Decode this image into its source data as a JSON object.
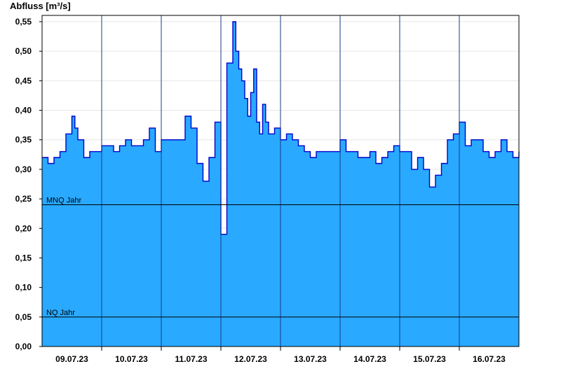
{
  "chart_data": {
    "type": "area",
    "title": "",
    "xlabel": "",
    "ylabel": "Abfluss [m³/s]",
    "ylim": [
      0,
      0.56
    ],
    "grid": true,
    "yticks": [
      "0,00",
      "0,05",
      "0,10",
      "0,15",
      "0,20",
      "0,25",
      "0,30",
      "0,35",
      "0,40",
      "0,45",
      "0,50",
      "0,55"
    ],
    "ytick_values": [
      0,
      0.05,
      0.1,
      0.15,
      0.2,
      0.25,
      0.3,
      0.35,
      0.4,
      0.45,
      0.5,
      0.55
    ],
    "xticks": [
      "09.07.23",
      "10.07.23",
      "11.07.23",
      "12.07.23",
      "13.07.23",
      "14.07.23",
      "15.07.23",
      "16.07.23"
    ],
    "xlim_days": [
      8.5,
      16.5
    ],
    "reference_lines": [
      {
        "label": "MNQ Jahr",
        "value": 0.24
      },
      {
        "label": "NQ Jahr",
        "value": 0.05
      }
    ],
    "x_days": [
      8.5,
      8.6,
      8.7,
      8.8,
      8.9,
      9.0,
      9.05,
      9.1,
      9.2,
      9.3,
      9.4,
      9.5,
      9.6,
      9.7,
      9.8,
      9.9,
      10.0,
      10.1,
      10.2,
      10.3,
      10.4,
      10.5,
      10.6,
      10.7,
      10.8,
      10.9,
      11.0,
      11.1,
      11.2,
      11.3,
      11.4,
      11.5,
      11.6,
      11.7,
      11.75,
      11.8,
      11.85,
      11.9,
      11.95,
      12.0,
      12.05,
      12.1,
      12.15,
      12.2,
      12.25,
      12.3,
      12.4,
      12.5,
      12.6,
      12.7,
      12.8,
      12.9,
      13.0,
      13.1,
      13.2,
      13.3,
      13.4,
      13.5,
      13.6,
      13.7,
      13.8,
      13.9,
      14.0,
      14.1,
      14.2,
      14.3,
      14.4,
      14.5,
      14.6,
      14.7,
      14.8,
      14.9,
      15.0,
      15.1,
      15.2,
      15.3,
      15.4,
      15.5,
      15.6,
      15.7,
      15.8,
      15.9,
      16.0,
      16.1,
      16.2,
      16.3,
      16.4,
      16.5
    ],
    "values": [
      0.32,
      0.31,
      0.32,
      0.33,
      0.36,
      0.39,
      0.37,
      0.35,
      0.32,
      0.33,
      0.33,
      0.34,
      0.34,
      0.33,
      0.34,
      0.35,
      0.34,
      0.34,
      0.35,
      0.37,
      0.33,
      0.35,
      0.35,
      0.35,
      0.35,
      0.39,
      0.37,
      0.31,
      0.28,
      0.32,
      0.38,
      0.19,
      0.48,
      0.55,
      0.5,
      0.47,
      0.45,
      0.42,
      0.39,
      0.43,
      0.47,
      0.38,
      0.36,
      0.41,
      0.38,
      0.36,
      0.37,
      0.35,
      0.36,
      0.35,
      0.34,
      0.33,
      0.32,
      0.33,
      0.33,
      0.33,
      0.33,
      0.35,
      0.33,
      0.33,
      0.32,
      0.32,
      0.33,
      0.31,
      0.32,
      0.33,
      0.34,
      0.33,
      0.33,
      0.3,
      0.32,
      0.3,
      0.27,
      0.29,
      0.31,
      0.35,
      0.36,
      0.38,
      0.34,
      0.35,
      0.35,
      0.33,
      0.32,
      0.33,
      0.35,
      0.33,
      0.32,
      0.33
    ]
  }
}
